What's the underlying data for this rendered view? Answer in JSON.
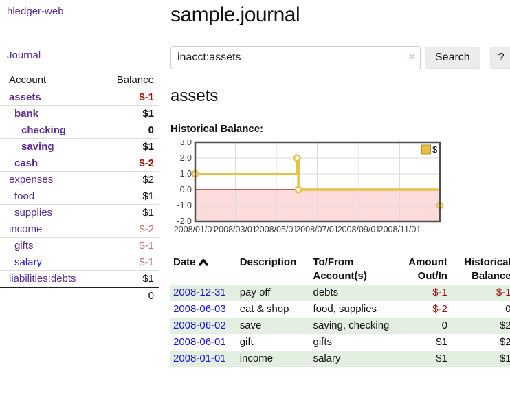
{
  "app": {
    "brand": "hledger-web",
    "nav_journal": "Journal"
  },
  "sidebar": {
    "account_header": "Account",
    "balance_header": "Balance",
    "accounts": [
      {
        "name": "assets",
        "depth": 1,
        "bold": true,
        "balance": "$-1",
        "balance_style": "neg-strong"
      },
      {
        "name": "bank",
        "depth": 2,
        "bold": true,
        "balance": "$1",
        "balance_style": "pos"
      },
      {
        "name": "checking",
        "depth": 3,
        "bold": true,
        "balance": "0",
        "balance_style": "pos"
      },
      {
        "name": "saving",
        "depth": 3,
        "bold": true,
        "balance": "$1",
        "balance_style": "pos"
      },
      {
        "name": "cash",
        "depth": 2,
        "bold": true,
        "balance": "$-2",
        "balance_style": "neg-strong"
      },
      {
        "name": "expenses",
        "depth": 1,
        "bold": false,
        "balance": "$2",
        "balance_style": "pos"
      },
      {
        "name": "food",
        "depth": 2,
        "bold": false,
        "balance": "$1",
        "balance_style": "pos"
      },
      {
        "name": "supplies",
        "depth": 2,
        "bold": false,
        "balance": "$1",
        "balance_style": "pos"
      },
      {
        "name": "income",
        "depth": 1,
        "bold": false,
        "balance": "$-2",
        "balance_style": "neg-muted"
      },
      {
        "name": "gifts",
        "depth": 2,
        "bold": false,
        "balance": "$-1",
        "balance_style": "neg-muted"
      },
      {
        "name": "salary",
        "depth": 2,
        "bold": false,
        "blue": true,
        "balance": "$-1",
        "balance_style": "neg-muted"
      },
      {
        "name": "liabilities:debts",
        "depth": 1,
        "bold": false,
        "balance": "$1",
        "balance_style": "pos"
      }
    ],
    "total": "0"
  },
  "header": {
    "title": "sample.journal"
  },
  "search": {
    "value": "inacct:assets",
    "clear_icon": "×",
    "button": "Search",
    "help_button": "?"
  },
  "account_page": {
    "title": "assets",
    "chart_label": "Historical Balance:"
  },
  "chart_data": {
    "type": "line",
    "title": "Historical Balance:",
    "step": true,
    "series": [
      {
        "name": "$",
        "color": "#e9c044",
        "points": [
          [
            "2008-01-01",
            1
          ],
          [
            "2008-06-01",
            2
          ],
          [
            "2008-06-03",
            0
          ],
          [
            "2008-12-31",
            -1
          ]
        ]
      }
    ],
    "x_range": [
      "2008-01-01",
      "2008-12-31"
    ],
    "x_ticks": [
      {
        "date": "2008-01-01",
        "label": "2008/01/01"
      },
      {
        "date": "2008-03-01",
        "label": "2008/03/01"
      },
      {
        "date": "2008-05-01",
        "label": "2008/05/01"
      },
      {
        "date": "2008-07-01",
        "label": "2008/07/01"
      },
      {
        "date": "2008-09-01",
        "label": "2008/09/01"
      },
      {
        "date": "2008-11-01",
        "label": "2008/11/01"
      }
    ],
    "y_ticks": [
      "3.0",
      "2.0",
      "1.0",
      "0.0",
      "-1.0",
      "-2.0"
    ],
    "ylim": [
      -2,
      3
    ],
    "grid": true,
    "legend": {
      "position": "top-right",
      "label": "$",
      "swatch_color": "#e9c044"
    },
    "negative_region_fill": "#fbdbdb",
    "zero_line_color": "#8b0000"
  },
  "register": {
    "columns": [
      {
        "label": "Date",
        "align": "left",
        "sorted": "asc"
      },
      {
        "label": "Description",
        "align": "left"
      },
      {
        "label": "To/From Account(s)",
        "align": "left"
      },
      {
        "label": "Amount Out/In",
        "align": "right"
      },
      {
        "label": "Historical Balance",
        "align": "right"
      }
    ],
    "rows": [
      {
        "date": "2008-12-31",
        "description": "pay off",
        "accounts": "debts",
        "amount": "$-1",
        "amount_neg": true,
        "balance": "$-1",
        "balance_neg": true
      },
      {
        "date": "2008-06-03",
        "description": "eat & shop",
        "accounts": "food, supplies",
        "amount": "$-2",
        "amount_neg": true,
        "balance": "0",
        "balance_neg": false
      },
      {
        "date": "2008-06-02",
        "description": "save",
        "accounts": "saving, checking",
        "amount": "0",
        "amount_neg": false,
        "balance": "$2",
        "balance_neg": false
      },
      {
        "date": "2008-06-01",
        "description": "gift",
        "accounts": "gifts",
        "amount": "$1",
        "amount_neg": false,
        "balance": "$2",
        "balance_neg": false
      },
      {
        "date": "2008-01-01",
        "description": "income",
        "accounts": "salary",
        "amount": "$1",
        "amount_neg": false,
        "balance": "$1",
        "balance_neg": false
      }
    ]
  },
  "colors": {
    "purple_link": "#5b2c91",
    "blue_link": "#1713e0",
    "negative_strong": "#9e0f0f",
    "negative_muted": "#c46e6e",
    "row_green": "#e3efe1",
    "chart_gold": "#e9c044",
    "zero_line": "#8b0000",
    "below_zero_fill": "#fbdbdb"
  }
}
